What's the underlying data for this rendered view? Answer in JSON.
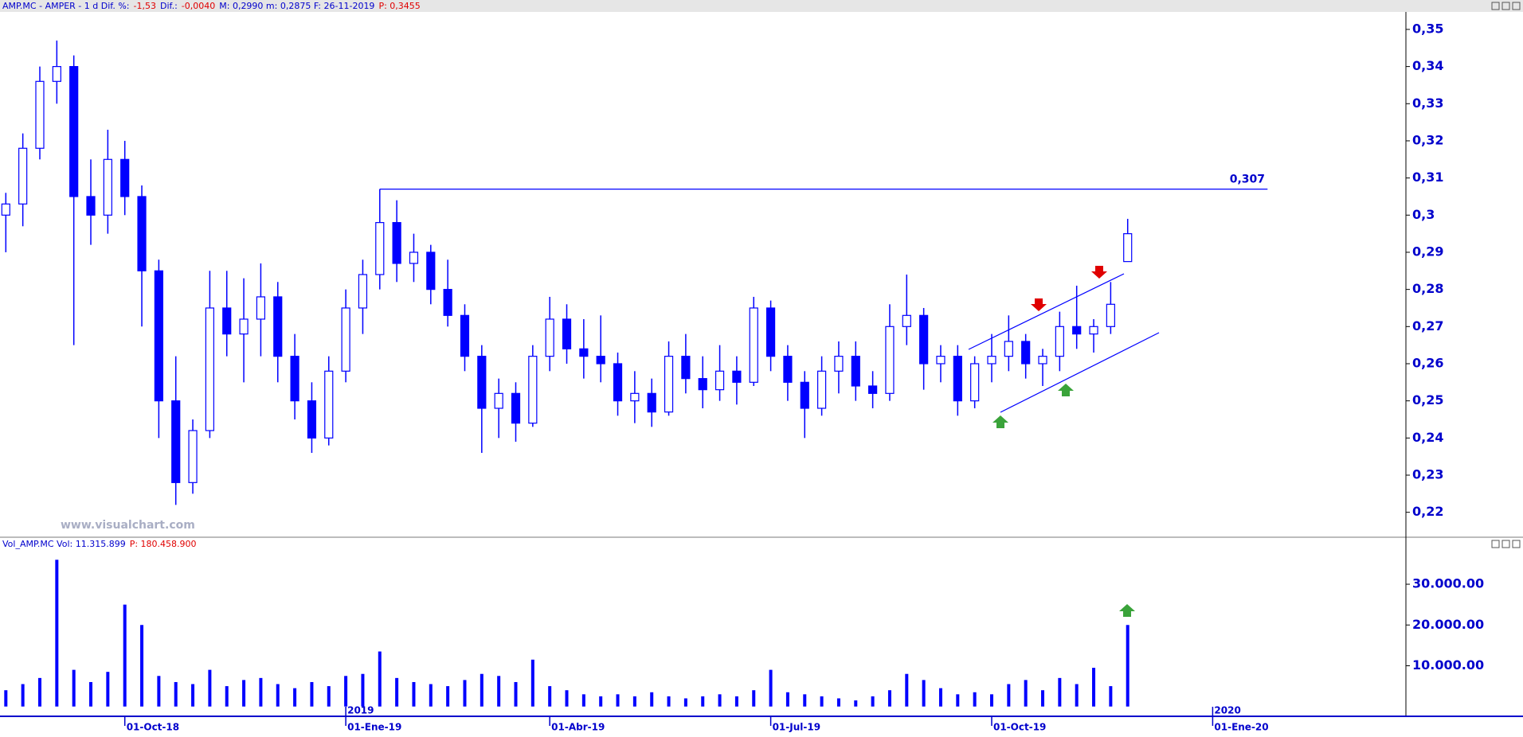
{
  "chart_data": [
    {
      "type": "candlestick",
      "header": [
        {
          "text": "AMP.MC - AMPER -  1 d  Dif. %:",
          "color": "#0000cc"
        },
        {
          "text": "-1,53",
          "color": "#e00000"
        },
        {
          "text": "Dif.:",
          "color": "#0000cc"
        },
        {
          "text": "-0,0040",
          "color": "#e00000"
        },
        {
          "text": "M: 0,2990  m: 0,2875  F: 26-11-2019",
          "color": "#0000cc"
        },
        {
          "text": "P: 0,3455",
          "color": "#e00000"
        }
      ],
      "color": "#0000ff",
      "open": [
        0.3,
        0.303,
        0.318,
        0.336,
        0.34,
        0.305,
        0.3,
        0.315,
        0.305,
        0.285,
        0.25,
        0.228,
        0.242,
        0.275,
        0.268,
        0.272,
        0.278,
        0.262,
        0.25,
        0.24,
        0.258,
        0.275,
        0.284,
        0.298,
        0.287,
        0.29,
        0.28,
        0.273,
        0.262,
        0.248,
        0.252,
        0.244,
        0.262,
        0.272,
        0.264,
        0.262,
        0.26,
        0.25,
        0.252,
        0.247,
        0.262,
        0.256,
        0.253,
        0.258,
        0.255,
        0.275,
        0.262,
        0.255,
        0.248,
        0.258,
        0.262,
        0.254,
        0.252,
        0.27,
        0.273,
        0.26,
        0.262,
        0.25,
        0.26,
        0.262,
        0.266,
        0.26,
        0.262,
        0.27,
        0.268,
        0.27,
        0.2875,
        null,
        null,
        null,
        null,
        null
      ],
      "high": [
        0.306,
        0.322,
        0.34,
        0.347,
        0.343,
        0.315,
        0.323,
        0.32,
        0.308,
        0.288,
        0.262,
        0.245,
        0.285,
        0.285,
        0.283,
        0.287,
        0.282,
        0.268,
        0.255,
        0.262,
        0.28,
        0.288,
        0.307,
        0.304,
        0.295,
        0.292,
        0.288,
        0.276,
        0.265,
        0.256,
        0.255,
        0.265,
        0.278,
        0.276,
        0.272,
        0.273,
        0.263,
        0.258,
        0.256,
        0.266,
        0.268,
        0.262,
        0.265,
        0.262,
        0.278,
        0.277,
        0.265,
        0.258,
        0.262,
        0.266,
        0.266,
        0.258,
        0.276,
        0.284,
        0.275,
        0.265,
        0.265,
        0.262,
        0.268,
        0.273,
        0.268,
        0.264,
        0.274,
        0.281,
        0.272,
        0.282,
        0.299,
        null,
        null,
        null,
        null,
        null
      ],
      "low": [
        0.29,
        0.297,
        0.315,
        0.33,
        0.265,
        0.292,
        0.295,
        0.3,
        0.27,
        0.24,
        0.222,
        0.225,
        0.24,
        0.262,
        0.255,
        0.262,
        0.255,
        0.245,
        0.236,
        0.238,
        0.255,
        0.268,
        0.28,
        0.282,
        0.282,
        0.276,
        0.27,
        0.258,
        0.236,
        0.24,
        0.239,
        0.243,
        0.258,
        0.26,
        0.256,
        0.255,
        0.246,
        0.244,
        0.243,
        0.246,
        0.252,
        0.248,
        0.25,
        0.249,
        0.254,
        0.258,
        0.25,
        0.24,
        0.246,
        0.252,
        0.25,
        0.248,
        0.25,
        0.265,
        0.253,
        0.255,
        0.246,
        0.248,
        0.255,
        0.258,
        0.256,
        0.254,
        0.258,
        0.264,
        0.263,
        0.268,
        0.2875,
        null,
        null,
        null,
        null,
        null
      ],
      "close": [
        0.303,
        0.318,
        0.336,
        0.34,
        0.305,
        0.3,
        0.315,
        0.305,
        0.285,
        0.25,
        0.228,
        0.242,
        0.275,
        0.268,
        0.272,
        0.278,
        0.262,
        0.25,
        0.24,
        0.258,
        0.275,
        0.284,
        0.298,
        0.287,
        0.29,
        0.28,
        0.273,
        0.262,
        0.248,
        0.252,
        0.244,
        0.262,
        0.272,
        0.264,
        0.262,
        0.26,
        0.25,
        0.252,
        0.247,
        0.262,
        0.256,
        0.253,
        0.258,
        0.255,
        0.275,
        0.262,
        0.255,
        0.248,
        0.258,
        0.262,
        0.254,
        0.252,
        0.27,
        0.273,
        0.26,
        0.262,
        0.25,
        0.26,
        0.262,
        0.266,
        0.26,
        0.262,
        0.27,
        0.268,
        0.27,
        0.276,
        0.295,
        null,
        null,
        null,
        null,
        null
      ],
      "ylim": [
        0.2135,
        0.3547
      ],
      "yticks": [
        {
          "value": 0.22,
          "label": "0,22"
        },
        {
          "value": 0.23,
          "label": "0,23"
        },
        {
          "value": 0.24,
          "label": "0,24"
        },
        {
          "value": 0.25,
          "label": "0,25"
        },
        {
          "value": 0.26,
          "label": "0,26"
        },
        {
          "value": 0.27,
          "label": "0,27"
        },
        {
          "value": 0.28,
          "label": "0,28"
        },
        {
          "value": 0.29,
          "label": "0,29"
        },
        {
          "value": 0.3,
          "label": "0,3"
        },
        {
          "value": 0.31,
          "label": "0,31"
        },
        {
          "value": 0.32,
          "label": "0,32"
        },
        {
          "value": 0.33,
          "label": "0,33"
        },
        {
          "value": 0.34,
          "label": "0,34"
        },
        {
          "value": 0.35,
          "label": "0,35"
        }
      ],
      "reference_line": {
        "value": 0.307,
        "label": "0,307"
      },
      "watermark": "www.visualchart.com"
    },
    {
      "type": "bar",
      "header": [
        {
          "text": "Vol_AMP.MC  Vol: 11.315.899",
          "color": "#0000cc"
        },
        {
          "text": "P: 180.458.900",
          "color": "#e00000"
        }
      ],
      "color": "#0000ff",
      "categories": [
        null,
        null,
        null,
        null,
        null,
        null,
        null,
        "01-Oct-18",
        null,
        null,
        null,
        null,
        null,
        null,
        null,
        null,
        null,
        null,
        null,
        null,
        "01-Ene-19",
        null,
        null,
        null,
        null,
        null,
        null,
        null,
        null,
        null,
        null,
        null,
        "01-Abr-19",
        null,
        null,
        null,
        null,
        null,
        null,
        null,
        null,
        null,
        null,
        null,
        null,
        "01-Jul-19",
        null,
        null,
        null,
        null,
        null,
        null,
        null,
        null,
        null,
        null,
        null,
        null,
        "01-Oct-19",
        null,
        null,
        null,
        null,
        null,
        null,
        null,
        null,
        null,
        null,
        null,
        null,
        "01-Ene-20"
      ],
      "years": [
        null,
        null,
        null,
        null,
        null,
        null,
        null,
        null,
        null,
        null,
        null,
        null,
        null,
        null,
        null,
        null,
        null,
        null,
        null,
        null,
        "2019",
        null,
        null,
        null,
        null,
        null,
        null,
        null,
        null,
        null,
        null,
        null,
        null,
        null,
        null,
        null,
        null,
        null,
        null,
        null,
        null,
        null,
        null,
        null,
        null,
        null,
        null,
        null,
        null,
        null,
        null,
        null,
        null,
        null,
        null,
        null,
        null,
        null,
        null,
        null,
        null,
        null,
        null,
        null,
        null,
        null,
        null,
        null,
        null,
        null,
        null,
        "2020"
      ],
      "values": [
        4000,
        5500,
        7000,
        36000,
        9000,
        6000,
        8500,
        25000,
        20000,
        7500,
        6000,
        5500,
        9000,
        5000,
        6500,
        7000,
        5500,
        4500,
        6000,
        5000,
        7500,
        8000,
        13500,
        7000,
        6000,
        5500,
        5000,
        6500,
        8000,
        7500,
        6000,
        11500,
        5000,
        4000,
        3000,
        2500,
        3000,
        2500,
        3500,
        2500,
        2000,
        2500,
        3000,
        2500,
        4000,
        9000,
        3500,
        3000,
        2500,
        2000,
        1500,
        2500,
        4000,
        8000,
        6500,
        4500,
        3000,
        3500,
        3000,
        5500,
        6500,
        4000,
        7000,
        5500,
        9500,
        5000,
        20000,
        null,
        null,
        null,
        null,
        null
      ],
      "ylim": [
        -2400,
        38600
      ],
      "yticks": [
        {
          "value": 10000,
          "label": "10.000.00"
        },
        {
          "value": 20000,
          "label": "20.000.00"
        },
        {
          "value": 30000,
          "label": "30.000.00"
        }
      ]
    }
  ]
}
